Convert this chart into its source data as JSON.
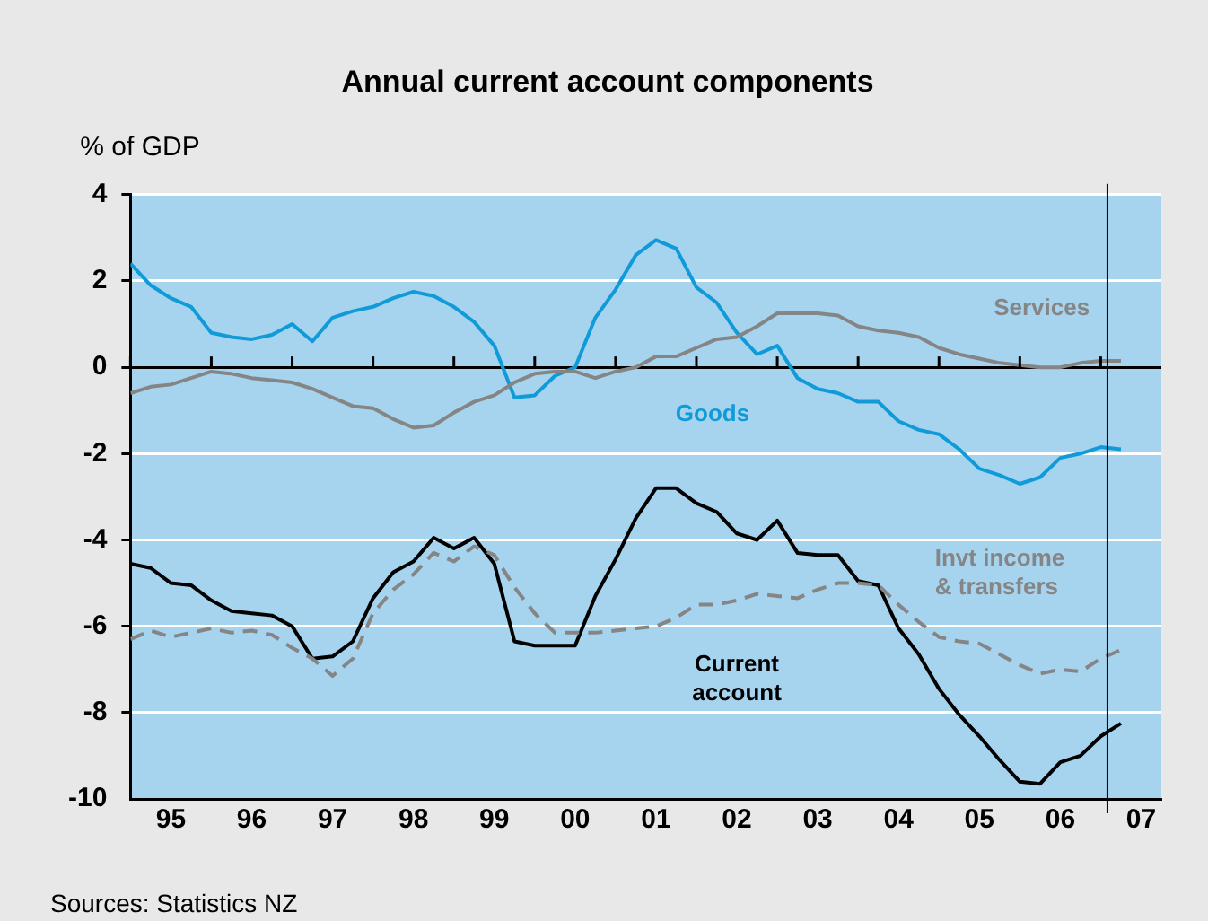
{
  "chart_data": {
    "type": "line",
    "title": "Annual current account components",
    "ylabel": "% of GDP",
    "x": [
      "1995-01",
      "1995-04",
      "1995-07",
      "1995-10",
      "1996-01",
      "1996-04",
      "1996-07",
      "1996-10",
      "1997-01",
      "1997-04",
      "1997-07",
      "1997-10",
      "1998-01",
      "1998-04",
      "1998-07",
      "1998-10",
      "1999-01",
      "1999-04",
      "1999-07",
      "1999-10",
      "2000-01",
      "2000-04",
      "2000-07",
      "2000-10",
      "2001-01",
      "2001-04",
      "2001-07",
      "2001-10",
      "2002-01",
      "2002-04",
      "2002-07",
      "2002-10",
      "2003-01",
      "2003-04",
      "2003-07",
      "2003-10",
      "2004-01",
      "2004-04",
      "2004-07",
      "2004-10",
      "2005-01",
      "2005-04",
      "2005-07",
      "2005-10",
      "2006-01",
      "2006-04",
      "2006-07",
      "2006-10",
      "2007-01",
      "2007-04"
    ],
    "series": [
      {
        "name": "Services",
        "color": "#858585",
        "line_style": "solid",
        "values": [
          -0.6,
          -0.45,
          -0.4,
          -0.25,
          -0.1,
          -0.15,
          -0.25,
          -0.3,
          -0.35,
          -0.5,
          -0.7,
          -0.9,
          -0.95,
          -1.2,
          -1.4,
          -1.35,
          -1.05,
          -0.8,
          -0.65,
          -0.35,
          -0.15,
          -0.1,
          -0.1,
          -0.25,
          -0.1,
          0.0,
          0.25,
          0.25,
          0.45,
          0.65,
          0.7,
          0.95,
          1.25,
          1.25,
          1.25,
          1.2,
          0.95,
          0.85,
          0.8,
          0.7,
          0.45,
          0.3,
          0.2,
          0.1,
          0.05,
          0.0,
          0.0,
          0.1,
          0.15,
          0.15
        ]
      },
      {
        "name": "Goods",
        "color": "#109bd8",
        "line_style": "solid",
        "values": [
          2.4,
          1.9,
          1.6,
          1.4,
          0.8,
          0.7,
          0.65,
          0.75,
          1.0,
          0.6,
          1.15,
          1.3,
          1.4,
          1.6,
          1.75,
          1.65,
          1.4,
          1.05,
          0.5,
          -0.7,
          -0.65,
          -0.2,
          0.0,
          1.15,
          1.8,
          2.6,
          2.95,
          2.75,
          1.85,
          1.5,
          0.8,
          0.3,
          0.5,
          -0.25,
          -0.5,
          -0.6,
          -0.8,
          -0.8,
          -1.25,
          -1.45,
          -1.55,
          -1.9,
          -2.35,
          -2.5,
          -2.7,
          -2.55,
          -2.1,
          -2.0,
          -1.85,
          -1.9
        ]
      },
      {
        "name": "Invt income & transfers",
        "color": "#858585",
        "line_style": "dashed",
        "values": [
          -6.3,
          -6.1,
          -6.25,
          -6.15,
          -6.05,
          -6.15,
          -6.1,
          -6.2,
          -6.5,
          -6.75,
          -7.15,
          -6.75,
          -5.7,
          -5.15,
          -4.8,
          -4.3,
          -4.5,
          -4.15,
          -4.35,
          -5.1,
          -5.7,
          -6.15,
          -6.15,
          -6.15,
          -6.1,
          -6.05,
          -6.0,
          -5.8,
          -5.5,
          -5.5,
          -5.4,
          -5.25,
          -5.3,
          -5.35,
          -5.15,
          -5.0,
          -5.0,
          -5.05,
          -5.5,
          -5.9,
          -6.25,
          -6.35,
          -6.4,
          -6.65,
          -6.9,
          -7.1,
          -7.0,
          -7.05,
          -6.75,
          -6.55
        ]
      },
      {
        "name": "Current account",
        "color": "#000000",
        "line_style": "solid",
        "values": [
          -4.55,
          -4.65,
          -5.0,
          -5.05,
          -5.4,
          -5.65,
          -5.7,
          -5.75,
          -6.0,
          -6.75,
          -6.7,
          -6.35,
          -5.35,
          -4.75,
          -4.5,
          -3.95,
          -4.2,
          -3.95,
          -4.55,
          -6.35,
          -6.45,
          -6.45,
          -6.45,
          -5.3,
          -4.45,
          -3.5,
          -2.8,
          -2.8,
          -3.15,
          -3.35,
          -3.85,
          -4.0,
          -3.55,
          -4.3,
          -4.35,
          -4.35,
          -4.95,
          -5.05,
          -6.05,
          -6.65,
          -7.45,
          -8.05,
          -8.55,
          -9.1,
          -9.6,
          -9.65,
          -9.15,
          -9.0,
          -8.55,
          -8.25
        ]
      }
    ],
    "xlim": [
      "1995-01",
      "2007-10"
    ],
    "xticks": [
      {
        "value": "1995-01",
        "label": null
      },
      {
        "value": "1995-07",
        "label": "95"
      },
      {
        "value": "1996-01",
        "label": null
      },
      {
        "value": "1996-07",
        "label": "96"
      },
      {
        "value": "1997-01",
        "label": null
      },
      {
        "value": "1997-07",
        "label": "97"
      },
      {
        "value": "1998-01",
        "label": null
      },
      {
        "value": "1998-07",
        "label": "98"
      },
      {
        "value": "1999-01",
        "label": null
      },
      {
        "value": "1999-07",
        "label": "99"
      },
      {
        "value": "2000-01",
        "label": null
      },
      {
        "value": "2000-07",
        "label": "00"
      },
      {
        "value": "2001-01",
        "label": null
      },
      {
        "value": "2001-07",
        "label": "01"
      },
      {
        "value": "2002-01",
        "label": null
      },
      {
        "value": "2002-07",
        "label": "02"
      },
      {
        "value": "2003-01",
        "label": null
      },
      {
        "value": "2003-07",
        "label": "03"
      },
      {
        "value": "2004-01",
        "label": null
      },
      {
        "value": "2004-07",
        "label": "04"
      },
      {
        "value": "2005-01",
        "label": null
      },
      {
        "value": "2005-07",
        "label": "05"
      },
      {
        "value": "2006-01",
        "label": null
      },
      {
        "value": "2006-07",
        "label": "06"
      },
      {
        "value": "2007-01",
        "label": null
      },
      {
        "value": "2007-07",
        "label": "07"
      }
    ],
    "ylim": [
      -10,
      4
    ],
    "yticks": [
      -10,
      -8,
      -6,
      -4,
      -2,
      0,
      2,
      4
    ],
    "grid": "y",
    "legend": false,
    "marker": "none",
    "ref_lines": [
      {
        "axis": "x",
        "value": "2007-02",
        "color": "#000000"
      }
    ],
    "annotations": [
      "Sources: Statistics NZ"
    ]
  }
}
